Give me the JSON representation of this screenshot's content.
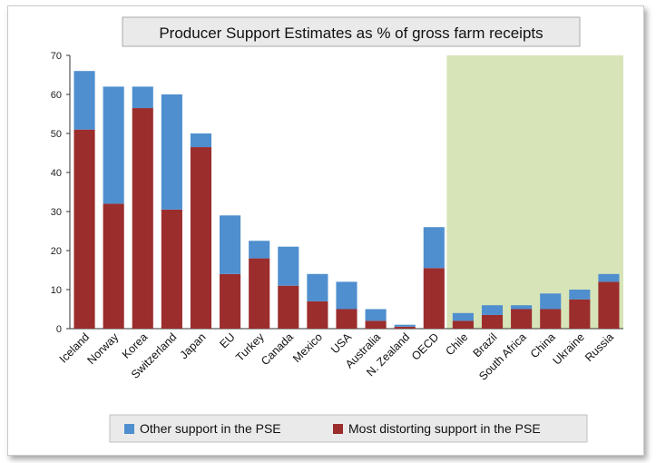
{
  "chart_data": {
    "type": "bar",
    "stacked": true,
    "title": "Producer Support Estimates as % of gross farm receipts",
    "categories": [
      "Iceland",
      "Norway",
      "Korea",
      "Switzerland",
      "Japan",
      "EU",
      "Turkey",
      "Canada",
      "Mexico",
      "USA",
      "Australia",
      "N. Zealand",
      "OECD",
      "Chile",
      "Brazil",
      "South Africa",
      "China",
      "Ukraine",
      "Russia"
    ],
    "series": [
      {
        "name": "Most distorting support in the PSE",
        "color": "#9b2d2d",
        "values": [
          51,
          32,
          56.5,
          30.5,
          46.5,
          14,
          18,
          11,
          7,
          5,
          2,
          0.5,
          15.5,
          2,
          3.5,
          5,
          5,
          7.5,
          12
        ]
      },
      {
        "name": "Other support in the PSE",
        "color": "#4f8fcf",
        "values": [
          15,
          30,
          5.5,
          29.5,
          3.5,
          15,
          4.5,
          10,
          7,
          7,
          3,
          0.5,
          10.5,
          2,
          2.5,
          1,
          4,
          2.5,
          2
        ]
      }
    ],
    "ylim": [
      0,
      70
    ],
    "yticks": [
      0,
      10,
      20,
      30,
      40,
      50,
      60,
      70
    ],
    "xlabel": "",
    "ylabel": "",
    "grid": false,
    "highlight_region": {
      "from": "Chile",
      "to": "Russia",
      "color": "#d7e4b8"
    },
    "legend": {
      "position": "bottom",
      "items": [
        {
          "label": "Other support in the PSE",
          "color": "#4f8fcf"
        },
        {
          "label": "Most distorting support in the PSE",
          "color": "#9b2d2d"
        }
      ]
    }
  }
}
